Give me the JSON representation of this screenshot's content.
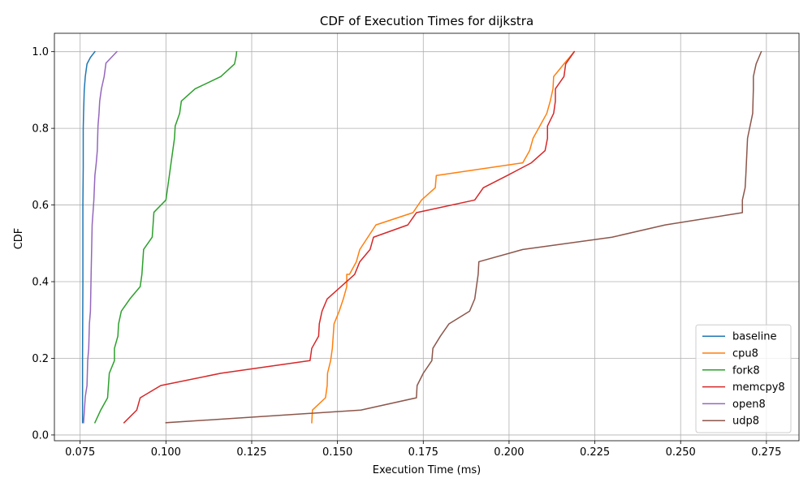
{
  "chart_data": {
    "type": "line",
    "title": "CDF of Execution Times for dijkstra",
    "xlabel": "Execution Time (ms)",
    "ylabel": "CDF",
    "xlim": [
      0.0675,
      0.2845
    ],
    "ylim": [
      -0.015,
      1.048
    ],
    "xticks": [
      0.075,
      0.1,
      0.125,
      0.15,
      0.175,
      0.2,
      0.225,
      0.25,
      0.275
    ],
    "xtick_labels": [
      "0.075",
      "0.100",
      "0.125",
      "0.150",
      "0.175",
      "0.200",
      "0.225",
      "0.250",
      "0.275"
    ],
    "yticks": [
      0.0,
      0.2,
      0.4,
      0.6,
      0.8,
      1.0
    ],
    "ytick_labels": [
      "0.0",
      "0.2",
      "0.4",
      "0.6",
      "0.8",
      "1.0"
    ],
    "grid": true,
    "legend_position": "bottom-right",
    "series": [
      {
        "name": "baseline",
        "color": "#1f77b4",
        "x": [
          0.0757,
          0.0757,
          0.0758,
          0.0758,
          0.0759,
          0.0759,
          0.076,
          0.0761,
          0.0762,
          0.0765,
          0.077,
          0.078,
          0.0793
        ],
        "y": [
          0.032,
          0.2,
          0.4,
          0.6,
          0.7,
          0.8,
          0.84,
          0.87,
          0.9,
          0.935,
          0.968,
          0.985,
          1.0
        ]
      },
      {
        "name": "cpu8",
        "color": "#ff7f0e",
        "x": [
          0.1425,
          0.1427,
          0.1465,
          0.147,
          0.1471,
          0.148,
          0.1485,
          0.149,
          0.1505,
          0.1517,
          0.1527,
          0.1527,
          0.1535,
          0.1555,
          0.1565,
          0.1612,
          0.172,
          0.1745,
          0.1785,
          0.1788,
          0.204,
          0.206,
          0.207,
          0.211,
          0.212,
          0.2128,
          0.213,
          0.216,
          0.219
        ],
        "y": [
          0.032,
          0.065,
          0.097,
          0.129,
          0.161,
          0.194,
          0.226,
          0.29,
          0.323,
          0.355,
          0.387,
          0.419,
          0.419,
          0.452,
          0.484,
          0.548,
          0.58,
          0.613,
          0.645,
          0.677,
          0.71,
          0.742,
          0.774,
          0.839,
          0.871,
          0.903,
          0.935,
          0.968,
          1.0
        ]
      },
      {
        "name": "fork8",
        "color": "#2ca02c",
        "x": [
          0.0793,
          0.081,
          0.083,
          0.0835,
          0.085,
          0.085,
          0.086,
          0.0862,
          0.087,
          0.0895,
          0.0925,
          0.093,
          0.0935,
          0.096,
          0.0965,
          0.1,
          0.101,
          0.1015,
          0.1025,
          0.1027,
          0.104,
          0.1045,
          0.1085,
          0.116,
          0.12,
          0.1205,
          0.1206
        ],
        "y": [
          0.032,
          0.065,
          0.097,
          0.161,
          0.194,
          0.226,
          0.258,
          0.29,
          0.323,
          0.355,
          0.387,
          0.419,
          0.484,
          0.516,
          0.581,
          0.613,
          0.677,
          0.71,
          0.774,
          0.806,
          0.839,
          0.871,
          0.903,
          0.935,
          0.968,
          0.99,
          1.0
        ]
      },
      {
        "name": "memcpy8",
        "color": "#d62728",
        "x": [
          0.0878,
          0.0915,
          0.0925,
          0.0985,
          0.116,
          0.142,
          0.1425,
          0.1445,
          0.1447,
          0.1455,
          0.147,
          0.155,
          0.1565,
          0.1595,
          0.1605,
          0.1705,
          0.173,
          0.19,
          0.1925,
          0.1995,
          0.2065,
          0.2105,
          0.2112,
          0.2112,
          0.213,
          0.2135,
          0.2135,
          0.216,
          0.2165,
          0.219
        ],
        "y": [
          0.032,
          0.065,
          0.097,
          0.129,
          0.161,
          0.194,
          0.226,
          0.258,
          0.29,
          0.323,
          0.355,
          0.419,
          0.452,
          0.484,
          0.516,
          0.548,
          0.58,
          0.613,
          0.645,
          0.677,
          0.71,
          0.742,
          0.774,
          0.806,
          0.839,
          0.871,
          0.903,
          0.935,
          0.968,
          1.0
        ]
      },
      {
        "name": "open8",
        "color": "#9467bd",
        "x": [
          0.076,
          0.0765,
          0.077,
          0.0772,
          0.0775,
          0.0777,
          0.078,
          0.0782,
          0.0785,
          0.079,
          0.0793,
          0.0797,
          0.08,
          0.0802,
          0.0805,
          0.0807,
          0.0812,
          0.082,
          0.0825,
          0.0825,
          0.0857
        ],
        "y": [
          0.032,
          0.1,
          0.129,
          0.194,
          0.226,
          0.29,
          0.323,
          0.419,
          0.548,
          0.613,
          0.677,
          0.71,
          0.742,
          0.806,
          0.839,
          0.871,
          0.903,
          0.935,
          0.968,
          0.97,
          1.0
        ]
      },
      {
        "name": "udp8",
        "color": "#8c564b",
        "x": [
          0.1,
          0.1568,
          0.173,
          0.1732,
          0.175,
          0.1775,
          0.1778,
          0.18,
          0.1825,
          0.1885,
          0.19,
          0.1905,
          0.191,
          0.1912,
          0.204,
          0.23,
          0.2455,
          0.268,
          0.268,
          0.2688,
          0.269,
          0.2695,
          0.271,
          0.2712,
          0.2712,
          0.272,
          0.2735
        ],
        "y": [
          0.032,
          0.065,
          0.097,
          0.129,
          0.161,
          0.194,
          0.226,
          0.258,
          0.29,
          0.323,
          0.355,
          0.387,
          0.419,
          0.452,
          0.484,
          0.516,
          0.548,
          0.58,
          0.613,
          0.645,
          0.677,
          0.774,
          0.839,
          0.903,
          0.935,
          0.968,
          1.0
        ]
      }
    ]
  }
}
